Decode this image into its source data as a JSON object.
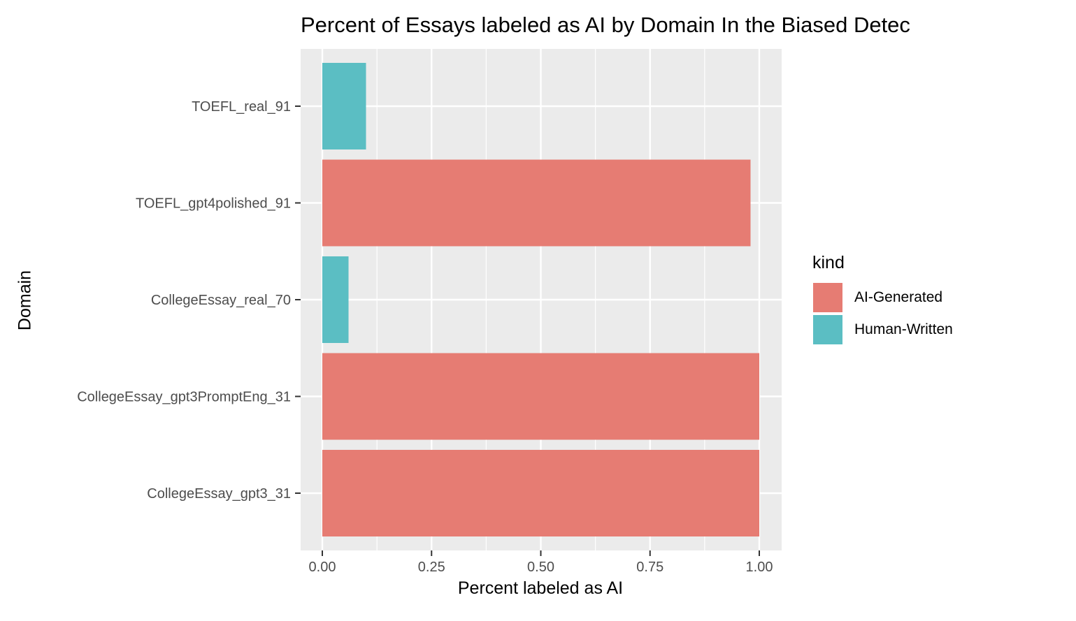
{
  "chart_data": {
    "type": "bar",
    "orientation": "horizontal",
    "title": "Percent of Essays labeled as AI by Domain In the Biased Detec",
    "xlabel": "Percent labeled as AI",
    "ylabel": "Domain",
    "xlim": [
      0,
      1
    ],
    "x_ticks": [
      "0.00",
      "0.25",
      "0.50",
      "0.75",
      "1.00"
    ],
    "categories": [
      "TOEFL_real_91",
      "TOEFL_gpt4polished_91",
      "CollegeEssay_real_70",
      "CollegeEssay_gpt3PromptEng_31",
      "CollegeEssay_gpt3_31"
    ],
    "values": [
      0.1,
      0.98,
      0.06,
      1.0,
      1.0
    ],
    "kinds": [
      "Human-Written",
      "AI-Generated",
      "Human-Written",
      "AI-Generated",
      "AI-Generated"
    ],
    "legend": {
      "title": "kind",
      "position": "right",
      "entries": [
        {
          "label": "AI-Generated",
          "color": "#E67C73"
        },
        {
          "label": "Human-Written",
          "color": "#5BBEC3"
        }
      ]
    },
    "grid": true,
    "panel_background": "#EBEBEB"
  }
}
